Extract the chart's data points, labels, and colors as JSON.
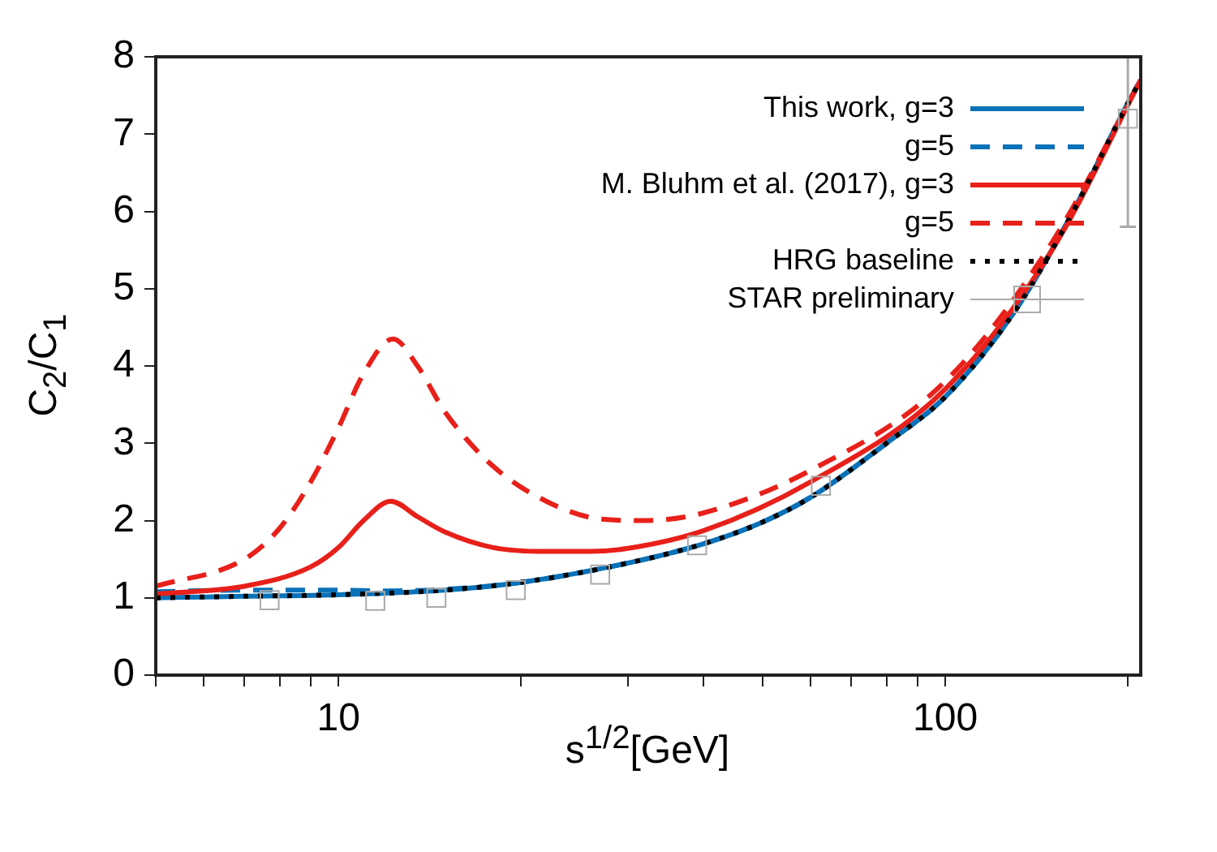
{
  "chart_data": {
    "type": "line",
    "xlabel": "s$^{1/2}$[GeV]",
    "ylabel": "C$_{2}$/C$_{1}$",
    "log": "x",
    "xlim": [
      5,
      210
    ],
    "ylim": [
      0,
      8
    ],
    "xticks": [
      {
        "value": 5,
        "label": null
      },
      {
        "value": 6,
        "label": null
      },
      {
        "value": 7,
        "label": null
      },
      {
        "value": 8,
        "label": null
      },
      {
        "value": 9,
        "label": null
      },
      10,
      {
        "value": 20,
        "label": null
      },
      {
        "value": 30,
        "label": null
      },
      {
        "value": 40,
        "label": null
      },
      {
        "value": 50,
        "label": null
      },
      {
        "value": 60,
        "label": null
      },
      {
        "value": 70,
        "label": null
      },
      {
        "value": 80,
        "label": null
      },
      {
        "value": 90,
        "label": null
      },
      100,
      {
        "value": 200,
        "label": null
      }
    ],
    "yticks": [
      0,
      1,
      2,
      3,
      4,
      5,
      6,
      7,
      8
    ],
    "grid": false,
    "legend": "top right",
    "series": [
      {
        "name": "This work, g=3",
        "color": "#0a72b8",
        "line_style": "solid",
        "marker": "none",
        "x": [
          5,
          7,
          10,
          15,
          20,
          30,
          40,
          50,
          60,
          80,
          100,
          130,
          160,
          200,
          210
        ],
        "values": [
          1.0,
          1.02,
          1.04,
          1.1,
          1.2,
          1.45,
          1.7,
          1.98,
          2.3,
          3.0,
          3.6,
          4.7,
          5.9,
          7.4,
          7.7
        ]
      },
      {
        "name": "g=5",
        "color": "#0a72b8",
        "line_style": "dashed",
        "marker": "none",
        "x": [
          5,
          7,
          10,
          12,
          15,
          20,
          30,
          40,
          50,
          60,
          80,
          100,
          130,
          160,
          200,
          210
        ],
        "values": [
          1.08,
          1.1,
          1.1,
          1.09,
          1.11,
          1.2,
          1.45,
          1.7,
          1.98,
          2.3,
          3.0,
          3.6,
          4.7,
          5.9,
          7.4,
          7.7
        ]
      },
      {
        "name": "M. Bluhm et al. (2017), g=3",
        "color": "#e8201a",
        "line_style": "solid",
        "marker": "none",
        "x": [
          5,
          7,
          9,
          10,
          11,
          12.2,
          13.5,
          15,
          18,
          22,
          26,
          30,
          40,
          60,
          100,
          150,
          210
        ],
        "values": [
          1.05,
          1.15,
          1.4,
          1.65,
          2.0,
          2.25,
          2.05,
          1.85,
          1.65,
          1.6,
          1.6,
          1.64,
          1.87,
          2.5,
          3.7,
          5.5,
          7.7
        ]
      },
      {
        "name": "g=5",
        "color": "#e8201a",
        "line_style": "dashed",
        "marker": "none",
        "x": [
          5,
          7,
          8,
          9,
          10,
          11,
          12.3,
          13.5,
          15,
          18,
          22,
          27,
          32,
          40,
          60,
          100,
          150,
          210
        ],
        "values": [
          1.15,
          1.5,
          1.9,
          2.5,
          3.2,
          3.9,
          4.35,
          4.0,
          3.4,
          2.7,
          2.25,
          2.02,
          2.0,
          2.1,
          2.65,
          3.8,
          5.6,
          7.7
        ]
      },
      {
        "name": "HRG baseline",
        "color": "#000000",
        "line_style": "dotted",
        "marker": "none",
        "x": [
          5,
          7,
          10,
          15,
          20,
          30,
          40,
          50,
          60,
          80,
          100,
          130,
          160,
          200,
          210
        ],
        "values": [
          1.0,
          1.02,
          1.04,
          1.1,
          1.2,
          1.45,
          1.7,
          1.98,
          2.3,
          3.0,
          3.6,
          4.7,
          5.9,
          7.4,
          7.7
        ]
      },
      {
        "name": "STAR preliminary",
        "type": "scatter",
        "color": "#aaaaaa",
        "marker": "square",
        "x": [
          7.7,
          11.5,
          14.5,
          19.6,
          27,
          39,
          62.4,
          200
        ],
        "values": [
          0.97,
          0.96,
          1.0,
          1.1,
          1.3,
          1.68,
          2.45,
          7.2
        ],
        "errors": [
          null,
          null,
          null,
          null,
          null,
          null,
          null,
          [
            5.8,
            8.0
          ]
        ]
      }
    ]
  }
}
